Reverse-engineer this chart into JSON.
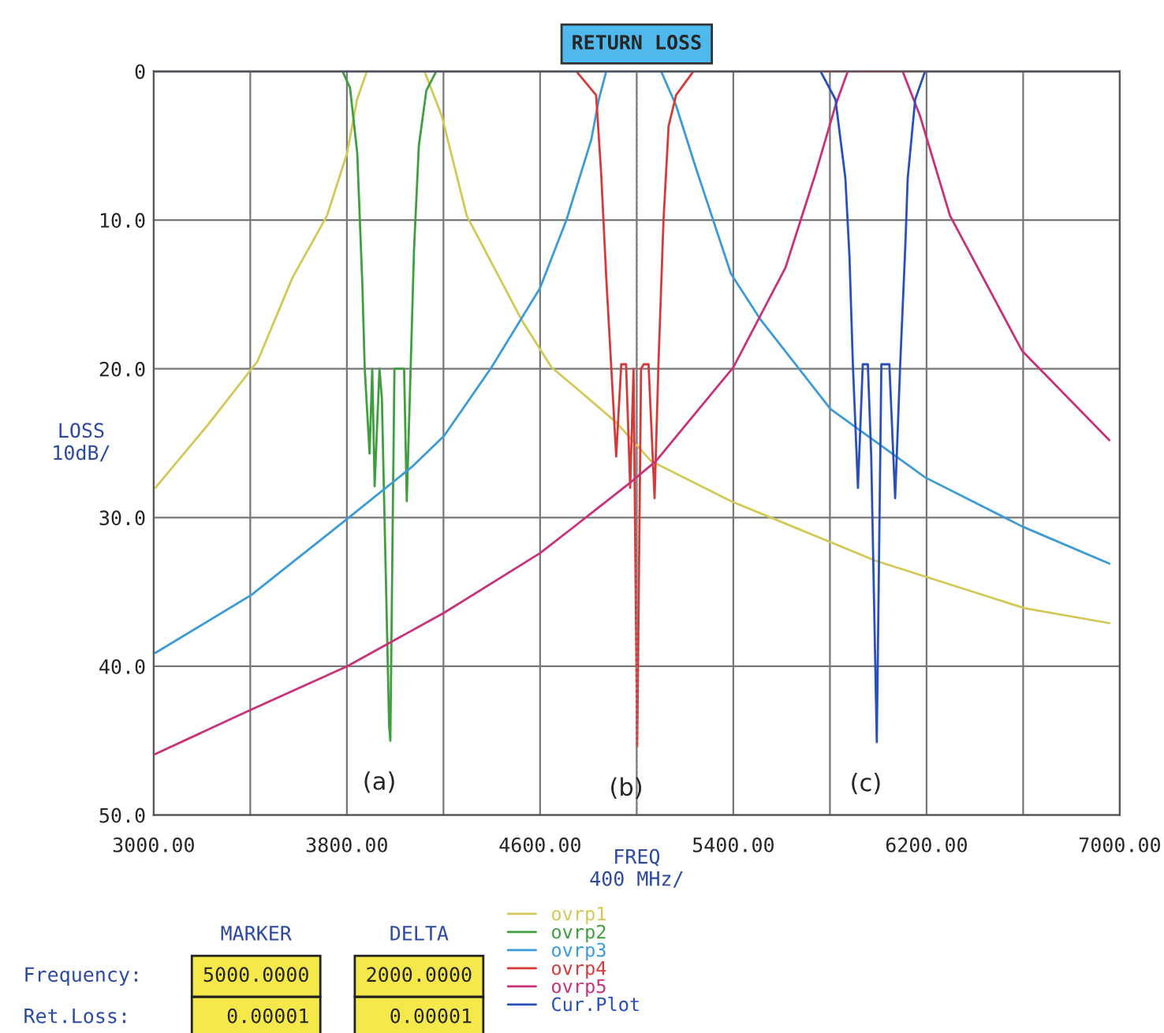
{
  "chart_data": {
    "type": "line",
    "title": "RETURN LOSS",
    "xlabel": "FREQ\n400 MHz/",
    "ylabel": "LOSS\n10dB/",
    "xlim": [
      3000,
      7000
    ],
    "ylim": [
      50,
      0
    ],
    "xticks": [
      {
        "value": 3000,
        "label": "3000.00"
      },
      {
        "value": 3400,
        "label": null
      },
      {
        "value": 3800,
        "label": "3800.00"
      },
      {
        "value": 4200,
        "label": null
      },
      {
        "value": 4600,
        "label": "4600.00"
      },
      {
        "value": 5000,
        "label": null
      },
      {
        "value": 5400,
        "label": "5400.00"
      },
      {
        "value": 5800,
        "label": null
      },
      {
        "value": 6200,
        "label": "6200.00"
      },
      {
        "value": 6600,
        "label": null
      },
      {
        "value": 7000,
        "label": "7000.00"
      }
    ],
    "yticks": [
      0,
      {
        "value": 10,
        "label": "10.0"
      },
      {
        "value": 20,
        "label": "20.0"
      },
      {
        "value": 30,
        "label": "30.0"
      },
      {
        "value": 40,
        "label": "40.0"
      },
      {
        "value": 50,
        "label": "50.0"
      }
    ],
    "grid": true,
    "legend": "bottom",
    "marker": "none",
    "line_style": "solid",
    "ref_lines": [
      {
        "axis": "x",
        "value": 5000,
        "color": "#8a8a8a",
        "line_style": "dotted"
      }
    ],
    "series": [
      {
        "name": "ovrp1",
        "color": "#d2c855",
        "x": [
          3007,
          3223,
          3430,
          3574,
          3718,
          3801,
          3842,
          3883,
          4121,
          4193,
          4296,
          4523,
          4647,
          4750,
          4915,
          5059,
          5390,
          5988,
          6607,
          6957
        ],
        "values": [
          28.0,
          23.8,
          19.5,
          13.9,
          9.7,
          5.5,
          1.9,
          0,
          0,
          3.0,
          9.7,
          16.7,
          19.9,
          21.3,
          23.6,
          26.2,
          28.9,
          32.9,
          36.1,
          37.1
        ]
      },
      {
        "name": "ovrp2",
        "color": "#3f9f3f",
        "x": [
          3000,
          3782,
          3813,
          3843,
          3864,
          3874,
          3894,
          3905,
          3915,
          3935,
          3945,
          3975,
          3980,
          3990,
          3997,
          4017,
          4037,
          4048,
          4064,
          4078,
          4098,
          4129,
          4170,
          7000
        ],
        "values": [
          0,
          0,
          1.1,
          5.5,
          14.3,
          20,
          25.7,
          20,
          27.9,
          20,
          22,
          44,
          45,
          30,
          20,
          20,
          20,
          28.9,
          20,
          12,
          5,
          1.3,
          0,
          0
        ]
      },
      {
        "name": "ovrp3",
        "color": "#3b9bd6",
        "x": [
          3007,
          3405,
          3801,
          4069,
          4203,
          4399,
          4599,
          4709,
          4812,
          4843,
          4874,
          5101,
          5163,
          5245,
          5390,
          5513,
          5802,
          6194,
          6596,
          6957
        ],
        "values": [
          39.1,
          35.2,
          30.1,
          26.6,
          24.5,
          19.9,
          14.6,
          10.0,
          4.6,
          1.9,
          0,
          0,
          2.3,
          6.5,
          13.6,
          16.7,
          22.7,
          27.3,
          30.6,
          33.1
        ]
      },
      {
        "name": "ovrp4",
        "color": "#d43a3a",
        "x": [
          3000,
          4750,
          4832,
          4853,
          4874,
          4894,
          4915,
          4936,
          4956,
          4973,
          4987,
          5002,
          5018,
          5029,
          5049,
          5074,
          5090,
          5111,
          5132,
          5163,
          5235,
          7000
        ],
        "values": [
          0,
          0,
          1.6,
          6.9,
          13.9,
          19.7,
          25.9,
          19.7,
          19.7,
          28.0,
          20,
          45.4,
          20,
          19.7,
          19.7,
          28.7,
          19.7,
          10,
          3.7,
          1.6,
          0,
          0
        ]
      },
      {
        "name": "ovrp5",
        "color": "#c8307a",
        "x": [
          3007,
          3405,
          3801,
          4203,
          4599,
          4750,
          4977,
          5080,
          5400,
          5616,
          5740,
          5823,
          5874,
          6101,
          6173,
          6297,
          6596,
          6957
        ],
        "values": [
          45.9,
          42.9,
          40.0,
          36.4,
          32.4,
          30.5,
          27.6,
          26.2,
          19.9,
          13.2,
          6.9,
          2.3,
          0,
          0,
          3.0,
          9.7,
          18.8,
          24.8
        ]
      },
      {
        "name": "Cur.Plot",
        "color": "#2850b8",
        "x": [
          3000,
          5761,
          5823,
          5864,
          5881,
          5895,
          5916,
          5936,
          5957,
          5971,
          5994,
          6013,
          6046,
          6070,
          6091,
          6112,
          6122,
          6153,
          6194,
          7000
        ],
        "values": [
          0,
          0,
          1.9,
          7.2,
          12.5,
          19.7,
          28.0,
          19.7,
          19.7,
          25.9,
          45.1,
          19.7,
          19.7,
          28.7,
          19.7,
          11.8,
          7.2,
          1.9,
          0,
          0
        ]
      }
    ],
    "annotations": [
      {
        "text": "(a)",
        "x": 3980,
        "y": 45
      },
      {
        "text": "(b)",
        "x": 5002,
        "y": 45.4
      },
      {
        "text": "(c)",
        "x": 5994,
        "y": 45.1
      },
      "MARKER",
      "DELTA",
      "Frequency:",
      "5000.0000",
      "2000.0000",
      "Ret.Loss:",
      "0.00001",
      "0.00001"
    ]
  }
}
